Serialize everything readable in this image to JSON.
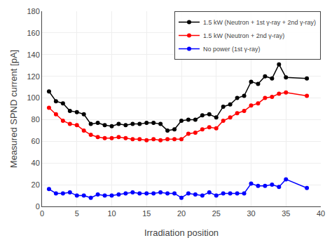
{
  "chart_data": {
    "type": "line",
    "xlabel": "Irradiation position",
    "ylabel": "Measured SPND current [pA]",
    "xlim": [
      0,
      40
    ],
    "ylim": [
      0,
      180
    ],
    "xticks": [
      0,
      5,
      10,
      15,
      20,
      25,
      30,
      35,
      40
    ],
    "yticks": [
      0,
      20,
      40,
      60,
      80,
      100,
      120,
      140,
      160,
      180
    ],
    "grid": true,
    "legend": "upper right",
    "x": [
      1,
      2,
      3,
      4,
      5,
      6,
      7,
      8,
      9,
      10,
      11,
      12,
      13,
      14,
      15,
      16,
      17,
      18,
      19,
      20,
      21,
      22,
      23,
      24,
      25,
      26,
      27,
      28,
      29,
      30,
      31,
      32,
      33,
      34,
      35,
      38
    ],
    "series": [
      {
        "name": "1.5 kW (Neutron + 1st γ-ray + 2nd γ-ray)",
        "color": "black",
        "marker": "circle",
        "line_style": "solid",
        "values": [
          106,
          97,
          95,
          88,
          87,
          85,
          76,
          77,
          75,
          74,
          76,
          75,
          76,
          76,
          77,
          77,
          76,
          70,
          71,
          79,
          80,
          80,
          84,
          85,
          82,
          92,
          94,
          100,
          102,
          115,
          113,
          120,
          118,
          131,
          119,
          118
        ]
      },
      {
        "name": "1.5 kW (Neutron + 2nd γ-ray)",
        "color": "red",
        "marker": "circle",
        "line_style": "solid",
        "values": [
          91,
          85,
          79,
          76,
          75,
          70,
          66,
          64,
          63,
          63,
          64,
          63,
          62,
          62,
          61,
          62,
          61,
          62,
          62,
          62,
          67,
          68,
          71,
          73,
          72,
          79,
          82,
          86,
          88,
          93,
          95,
          100,
          101,
          104,
          105,
          102
        ]
      },
      {
        "name": "No power (1st γ-ray)",
        "color": "blue",
        "marker": "circle",
        "line_style": "solid",
        "values": [
          16,
          12,
          12,
          13,
          10,
          10,
          8,
          11,
          10,
          10,
          11,
          12,
          13,
          12,
          12,
          12,
          13,
          12,
          12,
          8,
          12,
          11,
          10,
          13,
          10,
          12,
          12,
          12,
          12,
          21,
          19,
          19,
          20,
          18,
          25,
          17
        ]
      }
    ]
  }
}
